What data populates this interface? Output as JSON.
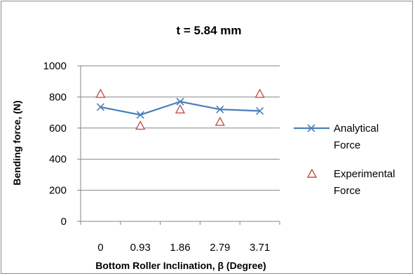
{
  "chart_data": {
    "type": "line",
    "title": "t = 5.84 mm",
    "xlabel": "Bottom Roller Inclination, β (Degree)",
    "ylabel": "Bending force, (N)",
    "categories": [
      "0",
      "0.93",
      "1.86",
      "2.79",
      "3.71"
    ],
    "ylim": [
      0,
      1000
    ],
    "yticks": [
      "0",
      "200",
      "400",
      "600",
      "800",
      "1000"
    ],
    "grid": true,
    "legend_position": "right",
    "series": [
      {
        "name": "Analytical Force",
        "name_lines": [
          "Analytical",
          "Force"
        ],
        "marker": "x",
        "color": "#4a7ebb",
        "values": [
          735,
          685,
          770,
          720,
          710
        ]
      },
      {
        "name": "Experimental Force",
        "name_lines": [
          "Experimental",
          "Force"
        ],
        "marker": "triangle",
        "color": "#c0504d",
        "values": [
          820,
          615,
          720,
          640,
          820
        ]
      }
    ]
  }
}
